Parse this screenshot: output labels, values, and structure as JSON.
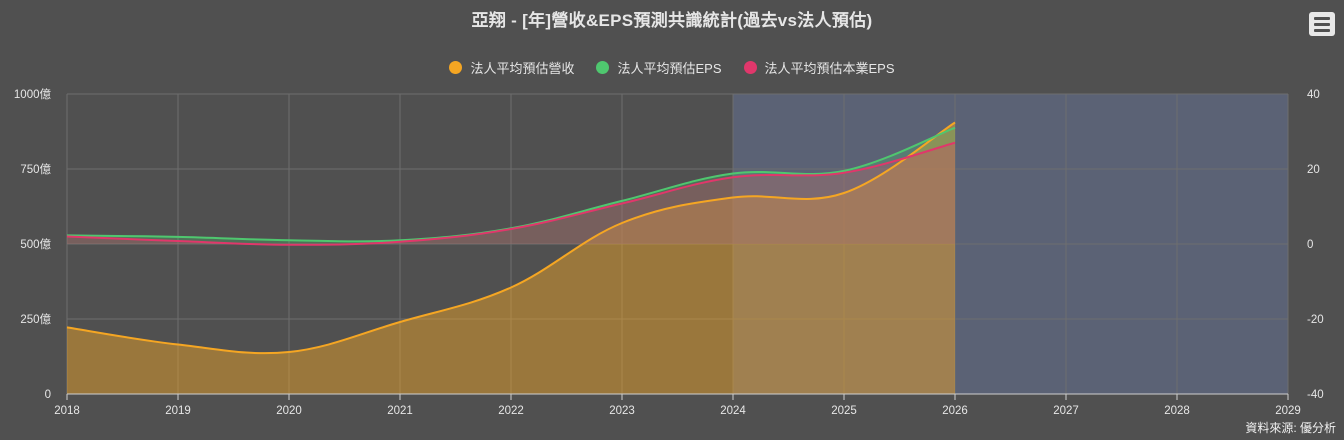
{
  "title": "亞翔 - [年]營收&EPS預測共識統計(過去vs法人預估)",
  "menu_icon": "hamburger-menu-icon",
  "credit": "資料來源: 優分析",
  "chart_data": {
    "type": "area",
    "x_ticks": [
      "2018",
      "2019",
      "2020",
      "2021",
      "2022",
      "2023",
      "2024",
      "2025",
      "2026",
      "2027",
      "2028",
      "2029"
    ],
    "xlim": [
      2018,
      2029
    ],
    "y_left_ticks": [
      "0",
      "250億",
      "500億",
      "750億",
      "1000億"
    ],
    "y_left_lim": [
      0,
      1000
    ],
    "y_right_ticks": [
      "-40",
      "-20",
      "0",
      "20",
      "40"
    ],
    "y_right_lim": [
      -40,
      40
    ],
    "forecast_band": [
      2024,
      2029
    ],
    "grid": true,
    "legend_position": "top-center",
    "series": [
      {
        "name": "法人平均預估營收",
        "axis": "left",
        "color": "#f5a623",
        "x": [
          2018,
          2019,
          2020,
          2021,
          2022,
          2023,
          2024,
          2025,
          2026
        ],
        "values": [
          222,
          165,
          140,
          240,
          355,
          570,
          655,
          670,
          905
        ]
      },
      {
        "name": "法人平均預估EPS",
        "axis": "right",
        "color": "#4fc76f",
        "x": [
          2018,
          2019,
          2020,
          2021,
          2022,
          2023,
          2024,
          2025,
          2026
        ],
        "values": [
          2.3,
          1.9,
          1.0,
          1.0,
          4.2,
          11.5,
          18.8,
          19.5,
          31.0
        ]
      },
      {
        "name": "法人平均預估本業EPS",
        "axis": "right",
        "color": "#e0376b",
        "x": [
          2018,
          2019,
          2020,
          2021,
          2022,
          2023,
          2024,
          2025,
          2026
        ],
        "values": [
          2.0,
          0.8,
          -0.2,
          0.6,
          4.0,
          10.8,
          17.8,
          19.0,
          27.0
        ]
      }
    ]
  }
}
